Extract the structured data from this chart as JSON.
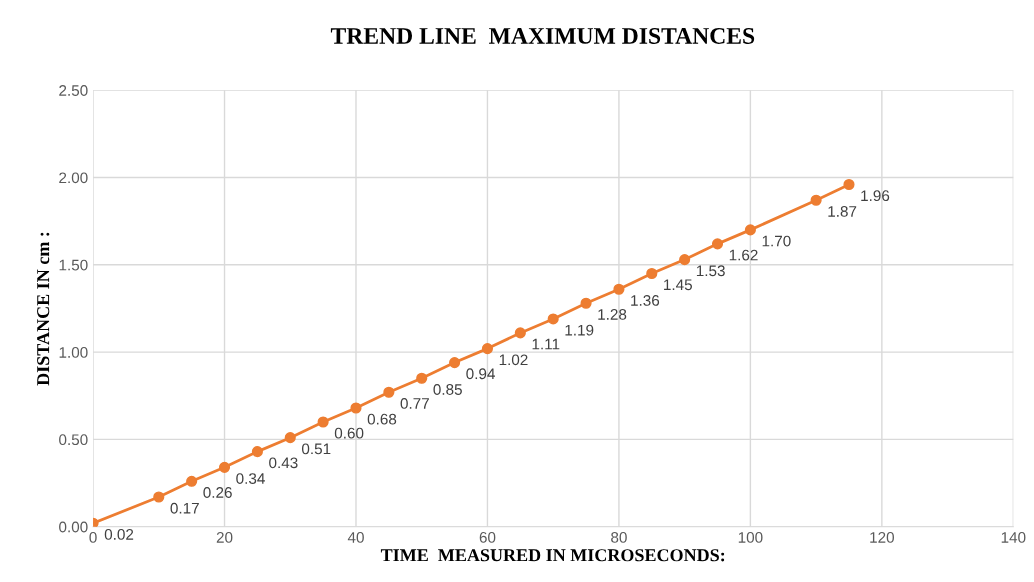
{
  "chart_data": {
    "type": "line",
    "title": "TREND LINE  MAXIMUM DISTANCES",
    "xlabel": "TIME  MEASURED IN MICROSECONDS:",
    "ylabel": "DISTANCE IN cm :",
    "x": [
      0,
      10,
      15,
      20,
      25,
      30,
      35,
      40,
      45,
      50,
      55,
      60,
      65,
      70,
      75,
      80,
      85,
      90,
      95,
      100,
      110,
      115
    ],
    "series": [
      {
        "color": "#ed7d31",
        "values": [
          0.02,
          0.17,
          0.26,
          0.34,
          0.43,
          0.51,
          0.6,
          0.68,
          0.77,
          0.85,
          0.94,
          1.02,
          1.11,
          1.19,
          1.28,
          1.36,
          1.45,
          1.53,
          1.62,
          1.7,
          1.87,
          1.96
        ],
        "value_labels": [
          "0.02",
          "0.17",
          "0.26",
          "0.34",
          "0.43",
          "0.51",
          "0.60",
          "0.68",
          "0.77",
          "0.85",
          "0.94",
          "1.02",
          "1.11",
          "1.19",
          "1.28",
          "1.36",
          "1.45",
          "1.53",
          "1.62",
          "1.70",
          "1.87",
          "1.96"
        ]
      }
    ],
    "xlim": [
      0,
      140
    ],
    "xticks": [
      0,
      20,
      40,
      60,
      80,
      100,
      120,
      140
    ],
    "ylim": [
      0,
      2.5
    ],
    "yticks": [
      {
        "value": 0,
        "label": "0.00"
      },
      {
        "value": 0.5,
        "label": "0.50"
      },
      {
        "value": 1,
        "label": "1.00"
      },
      {
        "value": 1.5,
        "label": "1.50"
      },
      {
        "value": 2,
        "label": "2.00"
      },
      {
        "value": 2.5,
        "label": "2.50"
      }
    ],
    "grid": true,
    "marker": "circle",
    "line_style": "solid",
    "legend": false
  }
}
